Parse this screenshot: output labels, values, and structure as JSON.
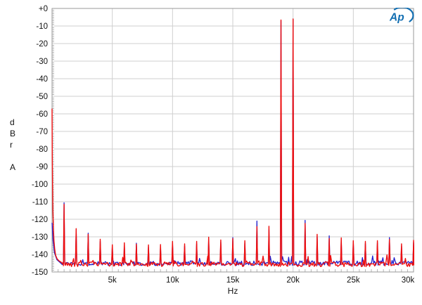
{
  "brand": {
    "logo_text": "Ap",
    "logo_color": "#136fb2"
  },
  "chart_data": {
    "type": "line",
    "title": "",
    "xlabel": "Hz",
    "ylabel_stacked": "d\nB\nr\n\nA",
    "grid": true,
    "legend": "none",
    "x_axis": {
      "min_hz": 0,
      "max_hz": 30000,
      "major_tick_hz": 5000,
      "minor_tick_hz": 500,
      "tick_labels": [
        "5k",
        "10k",
        "15k",
        "20k",
        "25k",
        "30k"
      ]
    },
    "y_axis": {
      "min_db": -150,
      "max_db": 0,
      "major_tick_db": 10,
      "minor_tick_db": 1,
      "tick_labels": [
        "+0",
        "-10",
        "-20",
        "-30",
        "-40",
        "-50",
        "-60",
        "-70",
        "-80",
        "-90",
        "-100",
        "-110",
        "-120",
        "-130",
        "-140",
        "-150"
      ]
    },
    "colors": {
      "trace_red": "#ee0f0f",
      "trace_blue": "#2121cd",
      "grid": "#cfcfcf",
      "axis": "#9a9a9a",
      "tick": "#b5b5b5"
    },
    "noise_floor_db": {
      "red": -145.6,
      "blue": -145.0,
      "jitter_db": 1.35
    },
    "dc_rise": {
      "red": [
        [
          0,
          -57
        ],
        [
          20,
          -84
        ],
        [
          45,
          -103
        ],
        [
          70,
          -115
        ],
        [
          110,
          -125
        ],
        [
          160,
          -132
        ],
        [
          220,
          -137
        ],
        [
          300,
          -140.5
        ],
        [
          420,
          -142.5
        ],
        [
          600,
          -143.8
        ],
        [
          800,
          -144.6
        ]
      ],
      "blue": [
        [
          0,
          -122
        ],
        [
          80,
          -132
        ],
        [
          200,
          -139
        ],
        [
          400,
          -143
        ],
        [
          700,
          -144.8
        ]
      ]
    },
    "tones": [
      {
        "hz": 19000,
        "red": -6.6,
        "blue": -7.0
      },
      {
        "hz": 20000,
        "red": -6.0,
        "blue": -6.4
      }
    ],
    "spikes": [
      {
        "hz": 1000,
        "red": -111.5,
        "blue": -110.6
      },
      {
        "hz": 2000,
        "red": -125.3,
        "blue": -126.5
      },
      {
        "hz": 3000,
        "red": -128.6,
        "blue": -127.9
      },
      {
        "hz": 4000,
        "red": -131.4,
        "blue": -132.6
      },
      {
        "hz": 5000,
        "red": -134.5,
        "blue": -135.6
      },
      {
        "hz": 6000,
        "red": -133.4,
        "blue": -134.8
      },
      {
        "hz": 7000,
        "red": -134.2,
        "blue": -133.6
      },
      {
        "hz": 8000,
        "red": -134.6,
        "blue": -135.8
      },
      {
        "hz": 9000,
        "red": -134.4,
        "blue": -135.5
      },
      {
        "hz": 10000,
        "red": -132.6,
        "blue": -133.8
      },
      {
        "hz": 11000,
        "red": -134.0,
        "blue": -135.2
      },
      {
        "hz": 12000,
        "red": -132.6,
        "blue": -133.9
      },
      {
        "hz": 13000,
        "red": -130.2,
        "blue": -131.6
      },
      {
        "hz": 14000,
        "red": -131.8,
        "blue": -133.0
      },
      {
        "hz": 15000,
        "red": -131.0,
        "blue": -130.4
      },
      {
        "hz": 16000,
        "red": -132.2,
        "blue": -133.4
      },
      {
        "hz": 17000,
        "red": -124.2,
        "blue": -121.0
      },
      {
        "hz": 18000,
        "red": -124.0,
        "blue": -126.0
      },
      {
        "hz": 21000,
        "red": -122.4,
        "blue": -120.6
      },
      {
        "hz": 22000,
        "red": -128.6,
        "blue": -130.0
      },
      {
        "hz": 23000,
        "red": -131.0,
        "blue": -129.4
      },
      {
        "hz": 24000,
        "red": -130.6,
        "blue": -132.0
      },
      {
        "hz": 25000,
        "red": -132.2,
        "blue": -133.4
      },
      {
        "hz": 26000,
        "red": -132.6,
        "blue": -133.8
      },
      {
        "hz": 27000,
        "red": -132.2,
        "blue": -133.4
      },
      {
        "hz": 28000,
        "red": -131.5,
        "blue": -130.4
      },
      {
        "hz": 29000,
        "red": -134.0,
        "blue": -135.2
      },
      {
        "hz": 30000,
        "red": -132.0,
        "blue": -133.2
      }
    ]
  }
}
